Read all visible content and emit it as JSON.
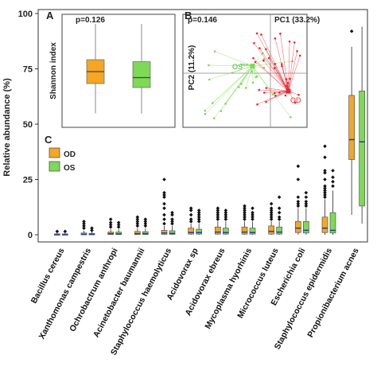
{
  "chart_data": [
    {
      "panel": "C",
      "type": "boxplot",
      "ylabel": "Relative abundance (%)",
      "ylim": [
        0,
        100
      ],
      "yticks": [
        0,
        25,
        50,
        75,
        100
      ],
      "legend": {
        "placement": "top-left",
        "entries": [
          "OD",
          "OS"
        ]
      },
      "colors": {
        "OD": "#f5a623",
        "OS": "#7ed957"
      },
      "categories": [
        "Bacillus cereus",
        "Xanthomonas campestris",
        "Ochrobactrum anthropi",
        "Acinetobacter baumannii",
        "Staphylococcus haemolyticus",
        "Acidovorax sp",
        "Acidovorax ebreus",
        "Mycoplasma hyorhinis",
        "Micrococcus luteus",
        "Escherichia coli",
        "Staphylococcus epidermidis",
        "Propionibacterium acnes"
      ],
      "series": [
        {
          "name": "OD",
          "boxes": [
            {
              "q1": 0,
              "median": 0,
              "q3": 0.4,
              "whisker_low": 0,
              "whisker_high": 0.8,
              "outliers": [
                1.5
              ]
            },
            {
              "q1": 0,
              "median": 0.2,
              "q3": 0.8,
              "whisker_low": 0,
              "whisker_high": 1.8,
              "outliers": [
                3,
                4,
                5,
                6
              ]
            },
            {
              "q1": 0.1,
              "median": 0.5,
              "q3": 1.2,
              "whisker_low": 0,
              "whisker_high": 2.5,
              "outliers": [
                3.5,
                4.5,
                5.5,
                7
              ]
            },
            {
              "q1": 0.1,
              "median": 0.5,
              "q3": 1.5,
              "whisker_low": 0,
              "whisker_high": 3,
              "outliers": [
                4,
                5,
                6,
                7,
                8
              ]
            },
            {
              "q1": 0.2,
              "median": 0.8,
              "q3": 2,
              "whisker_low": 0,
              "whisker_high": 4,
              "outliers": [
                5,
                7,
                9,
                12,
                14,
                17,
                18,
                19,
                25
              ]
            },
            {
              "q1": 0.3,
              "median": 1,
              "q3": 3,
              "whisker_low": 0,
              "whisker_high": 5,
              "outliers": [
                6,
                7,
                9,
                11,
                12
              ]
            },
            {
              "q1": 0.3,
              "median": 1.2,
              "q3": 3.5,
              "whisker_low": 0,
              "whisker_high": 6,
              "outliers": [
                7,
                8,
                9,
                10,
                11,
                12
              ]
            },
            {
              "q1": 0.3,
              "median": 1.2,
              "q3": 3.5,
              "whisker_low": 0,
              "whisker_high": 6,
              "outliers": [
                7,
                8,
                9,
                10,
                11,
                12,
                13
              ]
            },
            {
              "q1": 0.3,
              "median": 1.5,
              "q3": 4,
              "whisker_low": 0,
              "whisker_high": 6,
              "outliers": [
                7,
                8,
                9,
                10,
                11,
                12,
                14
              ]
            },
            {
              "q1": 1,
              "median": 3,
              "q3": 6,
              "whisker_low": 0,
              "whisker_high": 12,
              "outliers": [
                13,
                14,
                15,
                17,
                25,
                31
              ]
            },
            {
              "q1": 1,
              "median": 3,
              "q3": 8,
              "whisker_low": 0,
              "whisker_high": 16,
              "outliers": [
                17,
                18,
                19,
                20,
                21,
                22,
                25,
                28,
                29,
                35,
                40
              ]
            },
            {
              "q1": 34,
              "median": 43,
              "q3": 63,
              "whisker_low": 9,
              "whisker_high": 85,
              "outliers": [
                92
              ]
            }
          ]
        },
        {
          "name": "OS",
          "boxes": [
            {
              "q1": 0,
              "median": 0,
              "q3": 0.4,
              "whisker_low": 0,
              "whisker_high": 0.8,
              "outliers": [
                1.5
              ]
            },
            {
              "q1": 0,
              "median": 0.2,
              "q3": 0.6,
              "whisker_low": 0,
              "whisker_high": 1.5,
              "outliers": [
                2,
                3
              ]
            },
            {
              "q1": 0.1,
              "median": 0.4,
              "q3": 1.2,
              "whisker_low": 0,
              "whisker_high": 2.5,
              "outliers": [
                3.5,
                4.5,
                5.5
              ]
            },
            {
              "q1": 0.1,
              "median": 0.5,
              "q3": 1.4,
              "whisker_low": 0,
              "whisker_high": 3,
              "outliers": [
                4,
                5,
                6,
                7
              ]
            },
            {
              "q1": 0.2,
              "median": 0.6,
              "q3": 1.8,
              "whisker_low": 0,
              "whisker_high": 4,
              "outliers": [
                5,
                6,
                7,
                9,
                10
              ]
            },
            {
              "q1": 0.3,
              "median": 1,
              "q3": 2.5,
              "whisker_low": 0,
              "whisker_high": 5,
              "outliers": [
                6,
                7,
                8,
                9,
                10,
                11
              ]
            },
            {
              "q1": 0.3,
              "median": 1,
              "q3": 3,
              "whisker_low": 0,
              "whisker_high": 6,
              "outliers": [
                7,
                8,
                9,
                10,
                11
              ]
            },
            {
              "q1": 0.3,
              "median": 1,
              "q3": 3,
              "whisker_low": 0,
              "whisker_high": 6,
              "outliers": [
                7,
                8,
                9,
                10,
                12
              ]
            },
            {
              "q1": 0.3,
              "median": 1.2,
              "q3": 3.5,
              "whisker_low": 0,
              "whisker_high": 6,
              "outliers": [
                7,
                8,
                10,
                12,
                17
              ]
            },
            {
              "q1": 0.8,
              "median": 2,
              "q3": 6,
              "whisker_low": 0,
              "whisker_high": 12,
              "outliers": [
                13,
                14,
                15,
                17,
                19
              ]
            },
            {
              "q1": 0.8,
              "median": 2,
              "q3": 10,
              "whisker_low": 0,
              "whisker_high": 20,
              "outliers": [
                22,
                24,
                26,
                29
              ]
            },
            {
              "q1": 13,
              "median": 42,
              "q3": 65,
              "whisker_low": 5,
              "whisker_high": 94,
              "outliers": []
            }
          ]
        }
      ]
    },
    {
      "panel": "A",
      "type": "boxplot",
      "ylabel": "Shannon index",
      "annotation": "p=0.126",
      "categories": [
        "OD",
        "OS"
      ],
      "series": [
        {
          "name": "OD",
          "box": {
            "q1": 1.8,
            "median": 2.4,
            "q3": 3.0,
            "whisker_low": 0.3,
            "whisker_high": 4.8
          }
        },
        {
          "name": "OS",
          "box": {
            "q1": 1.6,
            "median": 2.1,
            "q3": 2.9,
            "whisker_low": 0.3,
            "whisker_high": 4.8
          }
        }
      ]
    },
    {
      "panel": "B",
      "type": "scatter",
      "annotation": "p=0.146",
      "xlabel": "PC1 (33.2%)",
      "ylabel": "PC2 (11.2%)",
      "groups": [
        {
          "name": "OS",
          "centroid": [
            -0.05,
            0.02
          ]
        },
        {
          "name": "OD",
          "centroid": [
            0.05,
            -0.05
          ]
        }
      ]
    }
  ],
  "panel_labels": {
    "a": "A",
    "b": "B",
    "c": "C"
  }
}
